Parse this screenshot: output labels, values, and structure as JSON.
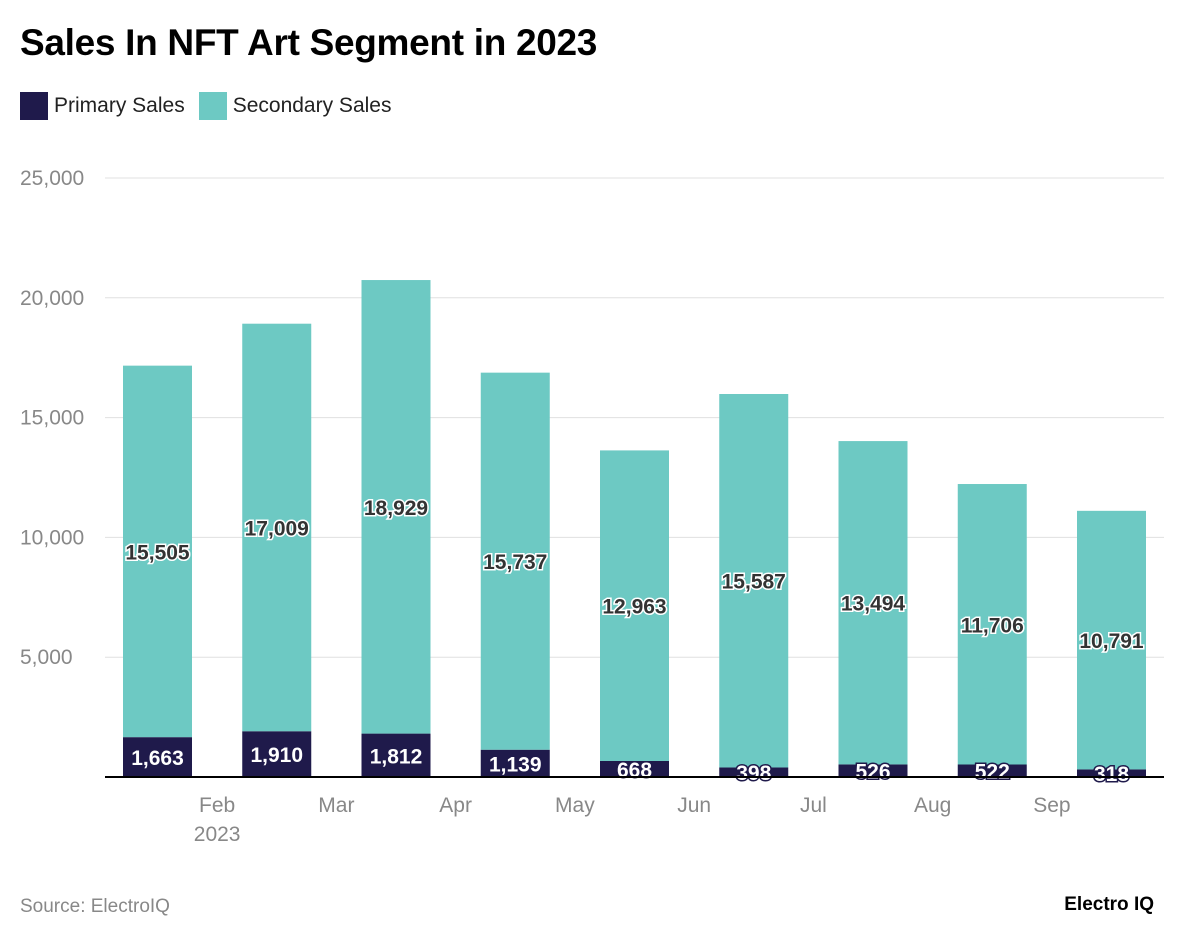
{
  "title": "Sales In NFT Art Segment in 2023",
  "source": "Source: ElectroIQ",
  "logo": "Electro IQ",
  "colors": {
    "primary": "#1f1a4b",
    "secondary": "#6dc9c3",
    "grid": "#e0e0e0",
    "axis": "#000000"
  },
  "chart_data": {
    "type": "bar",
    "stacked": true,
    "title": "Sales In NFT Art Segment in 2023",
    "categories": [
      "2023-01",
      "2023-02",
      "2023-03",
      "2023-04",
      "2023-05",
      "2023-06",
      "2023-07",
      "2023-08",
      "2023-09"
    ],
    "x_tick_labels": [
      "Feb",
      "Mar",
      "Apr",
      "May",
      "Jun",
      "Jul",
      "Aug",
      "Sep"
    ],
    "x_tick_sublabel": "2023",
    "series": [
      {
        "name": "Primary Sales",
        "color": "#1f1a4b",
        "values": [
          1663,
          1910,
          1812,
          1139,
          668,
          398,
          526,
          522,
          318
        ]
      },
      {
        "name": "Secondary Sales",
        "color": "#6dc9c3",
        "values": [
          15505,
          17009,
          18929,
          15737,
          12963,
          15587,
          13494,
          11706,
          10791
        ]
      }
    ],
    "y_ticks": [
      0,
      5000,
      10000,
      15000,
      20000,
      25000
    ],
    "y_tick_labels": [
      "",
      "5,000",
      "10,000",
      "15,000",
      "20,000",
      "25,000"
    ],
    "ylim": [
      0,
      25000
    ],
    "grid": true,
    "legend": "top-left",
    "xlabel": "",
    "ylabel": ""
  }
}
